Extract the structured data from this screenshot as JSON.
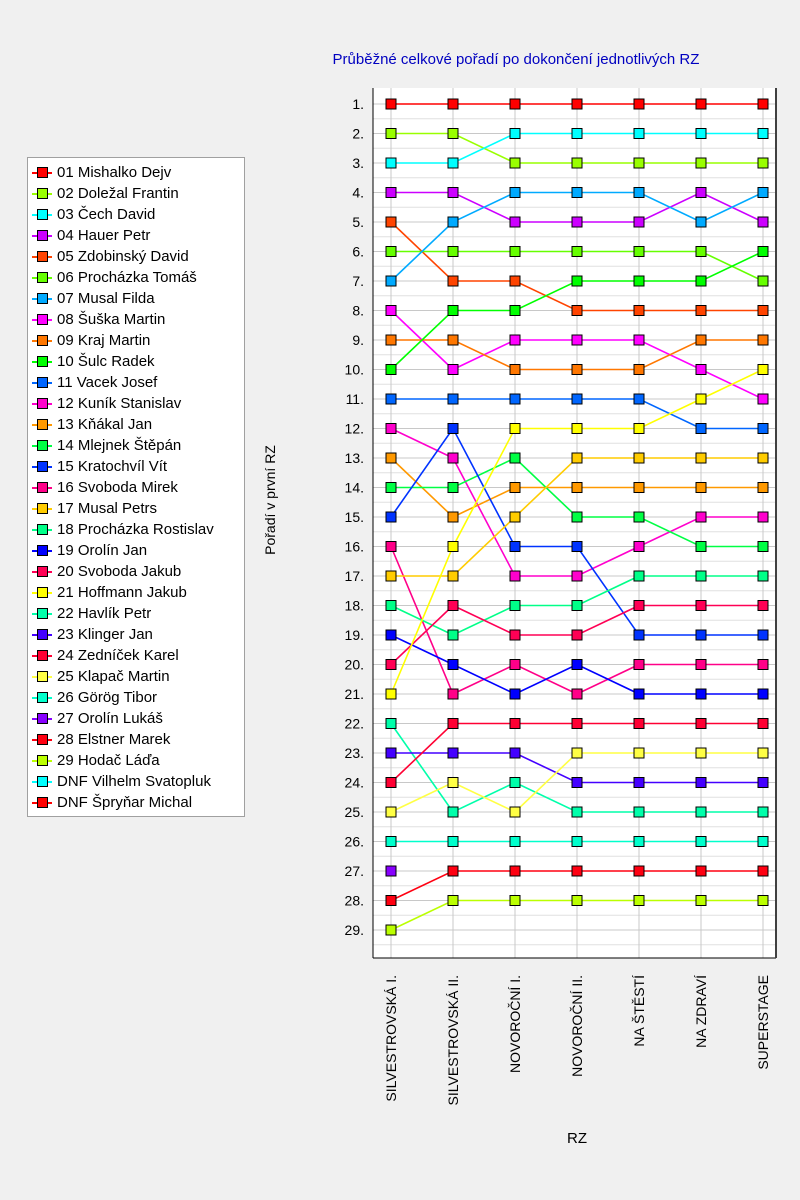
{
  "chart_data": {
    "type": "line",
    "title": "Průběžné celkové pořadí po dokončení jednotlivých RZ",
    "xlabel": "RZ",
    "ylabel": "Pořadí v první RZ",
    "categories": [
      "SILVESTROVSKÁ I.",
      "SILVESTROVSKÁ II.",
      "NOVOROČNÍ I.",
      "NOVOROČNÍ II.",
      "NA ŠTĚSTÍ",
      "NA ZDRAVÍ",
      "SUPERSTAGE"
    ],
    "y_tick_labels": [
      "1.",
      "2.",
      "3.",
      "4.",
      "5.",
      "6.",
      "7.",
      "8.",
      "9.",
      "10.",
      "11.",
      "12.",
      "13.",
      "14.",
      "15.",
      "16.",
      "17.",
      "18.",
      "19.",
      "20.",
      "21.",
      "22.",
      "23.",
      "24.",
      "25.",
      "26.",
      "27.",
      "28.",
      "29."
    ],
    "ylim": [
      1,
      29
    ],
    "y_inverted": true,
    "grid": true,
    "legend_position": "left",
    "series": [
      {
        "name": "01 Mishalko Dejv",
        "color": "#ff0000",
        "values": [
          1,
          1,
          1,
          1,
          1,
          1,
          1
        ]
      },
      {
        "name": "02 Doležal Frantin",
        "color": "#99ff00",
        "values": [
          2,
          2,
          3,
          3,
          3,
          3,
          3
        ]
      },
      {
        "name": "03 Čech David",
        "color": "#00ffff",
        "values": [
          3,
          3,
          2,
          2,
          2,
          2,
          2
        ]
      },
      {
        "name": "04 Hauer Petr",
        "color": "#cc00ff",
        "values": [
          4,
          4,
          5,
          5,
          5,
          4,
          5
        ]
      },
      {
        "name": "05 Zdobinský David",
        "color": "#ff4400",
        "values": [
          5,
          7,
          7,
          8,
          8,
          8,
          8
        ]
      },
      {
        "name": "06 Procházka Tomáš",
        "color": "#66ff00",
        "values": [
          6,
          6,
          6,
          6,
          6,
          6,
          7
        ]
      },
      {
        "name": "07 Musal Filda",
        "color": "#00aaff",
        "values": [
          7,
          5,
          4,
          4,
          4,
          5,
          4
        ]
      },
      {
        "name": "08 Šuška Martin",
        "color": "#ff00ff",
        "values": [
          8,
          10,
          9,
          9,
          9,
          10,
          11
        ]
      },
      {
        "name": "09 Kraj Martin",
        "color": "#ff7700",
        "values": [
          9,
          9,
          10,
          10,
          10,
          9,
          9
        ]
      },
      {
        "name": "10 Šulc Radek",
        "color": "#00ff00",
        "values": [
          10,
          8,
          8,
          7,
          7,
          7,
          6
        ]
      },
      {
        "name": "11 Vacek Josef",
        "color": "#0066ff",
        "values": [
          11,
          11,
          11,
          11,
          11,
          12,
          12
        ]
      },
      {
        "name": "12 Kuník Stanislav",
        "color": "#ff00cc",
        "values": [
          12,
          13,
          17,
          17,
          16,
          15,
          15
        ]
      },
      {
        "name": "13 Kňákal Jan",
        "color": "#ff9900",
        "values": [
          13,
          15,
          14,
          14,
          14,
          14,
          14
        ]
      },
      {
        "name": "14 Mlejnek Štěpán",
        "color": "#00ff44",
        "values": [
          14,
          14,
          13,
          15,
          15,
          16,
          16
        ]
      },
      {
        "name": "15 Kratochvíl Vít",
        "color": "#0033ff",
        "values": [
          15,
          12,
          16,
          16,
          19,
          19,
          19
        ]
      },
      {
        "name": "16 Svoboda Mirek",
        "color": "#ff0088",
        "values": [
          16,
          21,
          20,
          21,
          20,
          20,
          20
        ]
      },
      {
        "name": "17 Musal Petrs",
        "color": "#ffcc00",
        "values": [
          17,
          17,
          15,
          13,
          13,
          13,
          13
        ]
      },
      {
        "name": "18 Procházka Rostislav",
        "color": "#00ff88",
        "values": [
          18,
          19,
          18,
          18,
          17,
          17,
          17
        ]
      },
      {
        "name": "19 Orolín Jan",
        "color": "#0000ff",
        "values": [
          19,
          20,
          21,
          20,
          21,
          21,
          21
        ]
      },
      {
        "name": "20 Svoboda Jakub",
        "color": "#ff0055",
        "values": [
          20,
          18,
          19,
          19,
          18,
          18,
          18
        ]
      },
      {
        "name": "21 Hoffmann Jakub",
        "color": "#ffff00",
        "values": [
          21,
          16,
          12,
          12,
          12,
          11,
          10
        ]
      },
      {
        "name": "22 Havlík Petr",
        "color": "#00ffaa",
        "values": [
          22,
          25,
          24,
          25,
          25,
          25,
          25
        ]
      },
      {
        "name": "23 Klinger Jan",
        "color": "#4400ff",
        "values": [
          23,
          23,
          23,
          24,
          24,
          24,
          24
        ]
      },
      {
        "name": "24 Zedníček Karel",
        "color": "#ff0033",
        "values": [
          24,
          22,
          22,
          22,
          22,
          22,
          22
        ]
      },
      {
        "name": "25 Klapač Martin",
        "color": "#ffff44",
        "values": [
          25,
          24,
          25,
          23,
          23,
          23,
          23
        ]
      },
      {
        "name": "26 Görög Tibor",
        "color": "#00ffcc",
        "values": [
          26,
          26,
          26,
          26,
          26,
          26,
          26
        ]
      },
      {
        "name": "27 Orolín Lukáš",
        "color": "#8800ff",
        "values": [
          27,
          null,
          null,
          null,
          null,
          null,
          null
        ]
      },
      {
        "name": "28 Elstner Marek",
        "color": "#ff0011",
        "values": [
          28,
          27,
          27,
          27,
          27,
          27,
          27
        ]
      },
      {
        "name": "29 Hodač Láďa",
        "color": "#bbff00",
        "values": [
          29,
          28,
          28,
          28,
          28,
          28,
          28
        ]
      },
      {
        "name": "DNF Vilhelm Svatopluk",
        "color": "#00ffff",
        "values": [
          null,
          null,
          null,
          null,
          null,
          null,
          null
        ]
      },
      {
        "name": "DNF Špryňar Michal",
        "color": "#ff0000",
        "values": [
          null,
          null,
          null,
          null,
          null,
          null,
          null
        ]
      }
    ]
  }
}
